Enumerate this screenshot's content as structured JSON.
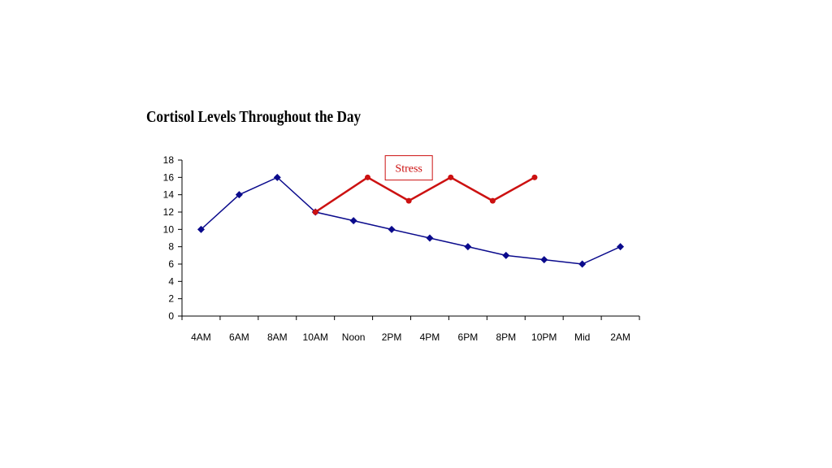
{
  "chart_data": {
    "type": "line",
    "title": "Cortisol Levels Throughout the Day",
    "xlabel": "",
    "ylabel": "",
    "ylim": [
      0,
      18
    ],
    "yticks": [
      0,
      2,
      4,
      6,
      8,
      10,
      12,
      14,
      16,
      18
    ],
    "categories": [
      "4AM",
      "6AM",
      "8AM",
      "10AM",
      "Noon",
      "2PM",
      "4PM",
      "6PM",
      "8PM",
      "10PM",
      "Mid",
      "2AM"
    ],
    "series": [
      {
        "name": "",
        "color": "#0a0a8c",
        "marker": "diamond",
        "x": [
          0,
          1,
          2,
          3,
          4,
          5,
          6,
          7,
          8,
          9,
          10,
          11
        ],
        "values": [
          10,
          14,
          16,
          12,
          11,
          10,
          9,
          8,
          7,
          6.5,
          6,
          8
        ]
      },
      {
        "name": "",
        "color": "#cc1111",
        "marker": "circle",
        "x": [
          3,
          4.37,
          5.45,
          6.55,
          7.65,
          8.75
        ],
        "values": [
          12,
          16,
          13.3,
          16,
          13.3,
          16
        ]
      }
    ],
    "annotations": [
      {
        "text": "Stress",
        "x": 5.45,
        "y": 17.1,
        "color": "#cc1111"
      }
    ],
    "grid": false,
    "legend": "none"
  }
}
